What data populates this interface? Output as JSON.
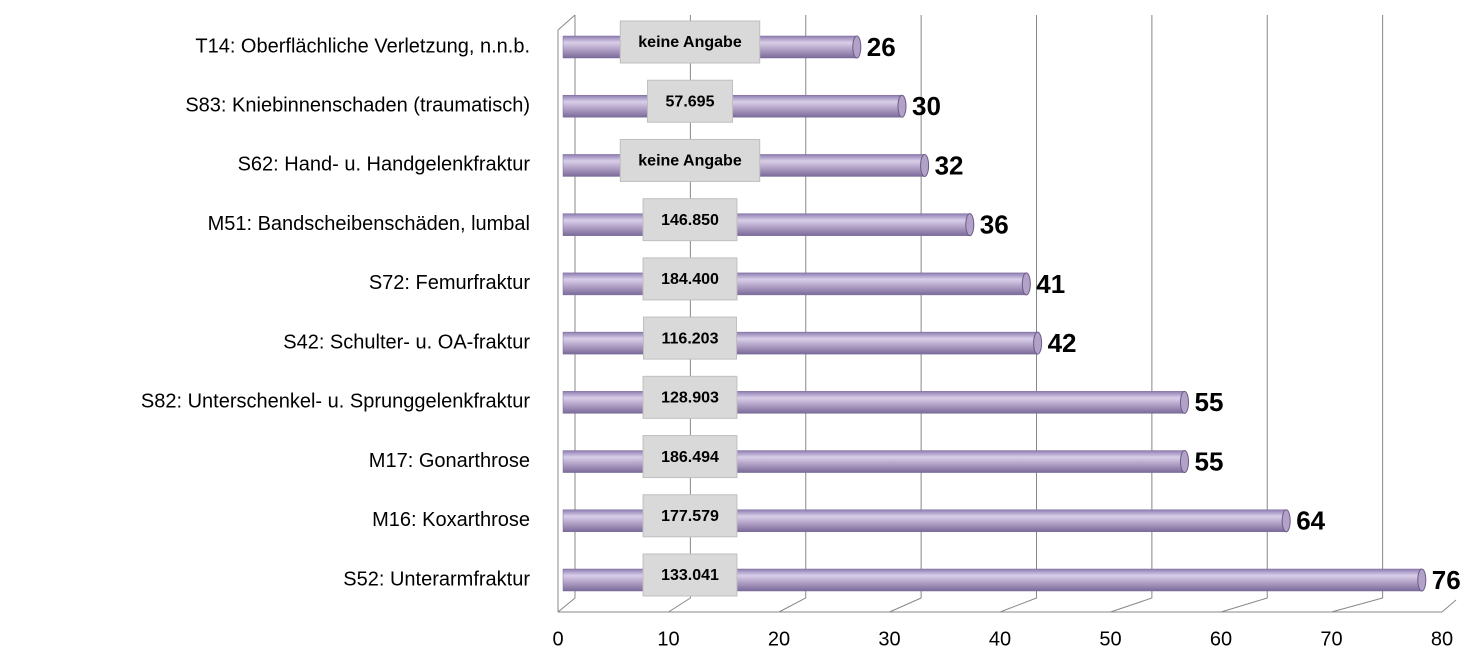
{
  "chart_data": {
    "type": "bar",
    "orientation": "horizontal",
    "categories": [
      "T14: Oberflächliche Verletzung, n.n.b.",
      "S83: Kniebinnenschaden (traumatisch)",
      "S62: Hand- u. Handgelenkfraktur",
      "M51: Bandscheibenschäden, lumbal",
      "S72: Femurfraktur",
      "S42: Schulter- u. OA-fraktur",
      "S82: Unterschenkel- u. Sprunggelenkfraktur",
      "M17: Gonarthrose",
      "M16: Koxarthrose",
      "S52: Unterarmfraktur"
    ],
    "values": [
      26,
      30,
      32,
      36,
      41,
      42,
      55,
      55,
      64,
      76
    ],
    "box_labels": [
      "keine Angabe",
      "57.695",
      "keine Angabe",
      "146.850",
      "184.400",
      "116.203",
      "128.903",
      "186.494",
      "177.579",
      "133.041"
    ],
    "color": "#b3a2c7",
    "xlim": [
      0,
      80
    ],
    "xticks": [
      0,
      10,
      20,
      30,
      40,
      50,
      60,
      70,
      80
    ],
    "grid": true
  }
}
